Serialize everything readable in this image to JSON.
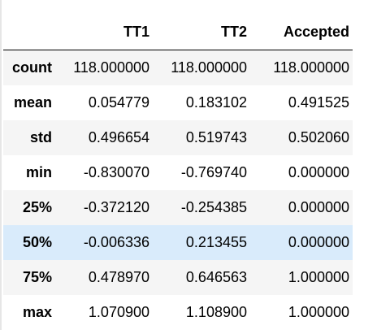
{
  "table": {
    "columns": [
      "",
      "TT1",
      "TT2",
      "Accepted"
    ],
    "rows": [
      {
        "label": "count",
        "values": [
          "118.000000",
          "118.000000",
          "118.000000"
        ]
      },
      {
        "label": "mean",
        "values": [
          "0.054779",
          "0.183102",
          "0.491525"
        ]
      },
      {
        "label": "std",
        "values": [
          "0.496654",
          "0.519743",
          "0.502060"
        ]
      },
      {
        "label": "min",
        "values": [
          "-0.830070",
          "-0.769740",
          "0.000000"
        ]
      },
      {
        "label": "25%",
        "values": [
          "-0.372120",
          "-0.254385",
          "0.000000"
        ]
      },
      {
        "label": "50%",
        "values": [
          "-0.006336",
          "0.213455",
          "0.000000"
        ]
      },
      {
        "label": "75%",
        "values": [
          "0.478970",
          "0.646563",
          "1.000000"
        ]
      },
      {
        "label": "max",
        "values": [
          "1.070900",
          "1.108900",
          "1.000000"
        ]
      }
    ],
    "highlighted_row": "50%",
    "colors": {
      "odd_row": "#f5f5f5",
      "even_row": "#ffffff",
      "hover_row": "#d9ebfb",
      "header_rule": "#000000"
    }
  }
}
